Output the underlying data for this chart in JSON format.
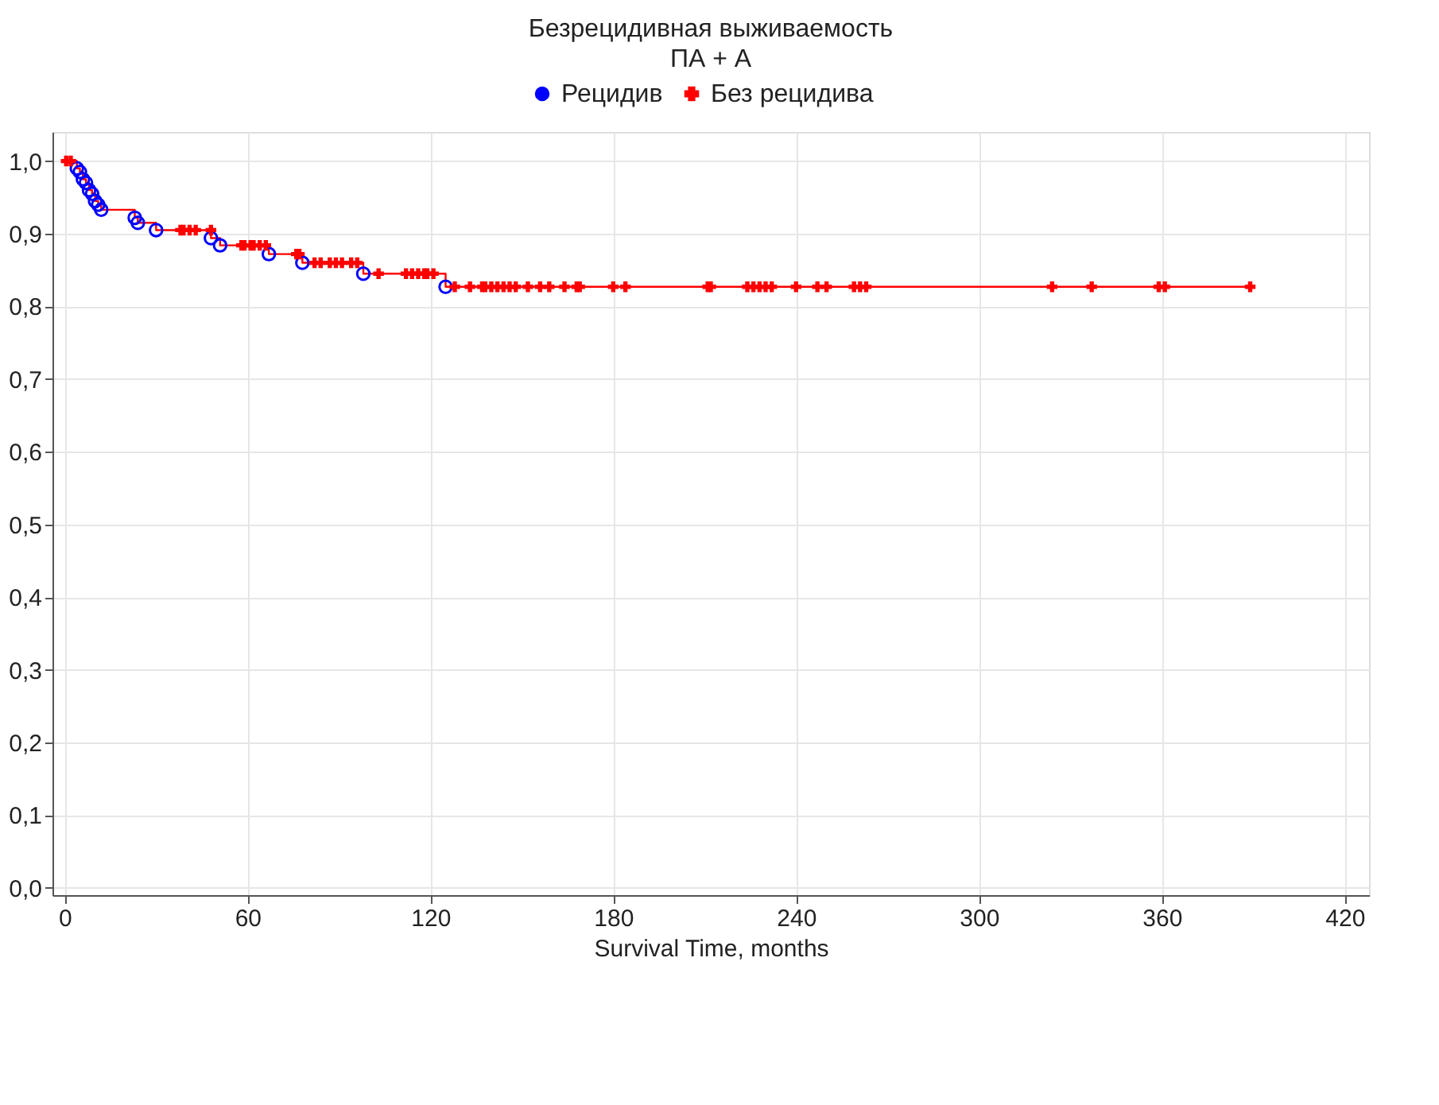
{
  "chart_data": {
    "type": "scatter",
    "title": "Безрецидивная выживаемость",
    "subtitle": "ПА + А",
    "xlabel": "Survival Time, months",
    "xlim": [
      -4,
      428
    ],
    "xticks": [
      0,
      60,
      120,
      180,
      240,
      300,
      360,
      420
    ],
    "ylim": [
      -0.01,
      1.04
    ],
    "yticks": [
      {
        "value": 0,
        "label": "0,0"
      },
      {
        "value": 0.1,
        "label": "0,1"
      },
      {
        "value": 0.2,
        "label": "0,2"
      },
      {
        "value": 0.3,
        "label": "0,3"
      },
      {
        "value": 0.4,
        "label": "0,4"
      },
      {
        "value": 0.5,
        "label": "0,5"
      },
      {
        "value": 0.6,
        "label": "0,6"
      },
      {
        "value": 0.7,
        "label": "0,7"
      },
      {
        "value": 0.8,
        "label": "0,8"
      },
      {
        "value": 0.9,
        "label": "0,9"
      },
      {
        "value": 1.0,
        "label": "1,0"
      }
    ],
    "grid": true,
    "legend": "top",
    "series": [
      {
        "type": "step",
        "color": "#ff0000",
        "marker": "none",
        "line_style": "solid",
        "x": [
          0,
          4,
          5,
          6,
          7,
          8,
          9,
          10,
          11,
          12,
          23,
          24,
          30,
          48,
          51,
          67,
          78,
          98,
          125,
          389
        ],
        "values": [
          1.0,
          0.99,
          0.985,
          0.975,
          0.97,
          0.96,
          0.955,
          0.945,
          0.94,
          0.933,
          0.922,
          0.915,
          0.905,
          0.894,
          0.884,
          0.872,
          0.86,
          0.845,
          0.827,
          0.827
        ]
      },
      {
        "name": "Рецидив",
        "color": "#0000ff",
        "marker": "circle",
        "x": [
          4,
          5,
          6,
          7,
          8,
          9,
          10,
          11,
          12,
          23,
          24,
          30,
          48,
          51,
          67,
          78,
          98,
          125
        ],
        "values": [
          0.99,
          0.985,
          0.975,
          0.97,
          0.96,
          0.955,
          0.945,
          0.94,
          0.933,
          0.922,
          0.915,
          0.905,
          0.894,
          0.884,
          0.872,
          0.86,
          0.845,
          0.827
        ]
      },
      {
        "name": "Без рецидива",
        "color": "#ff0000",
        "marker": "cross",
        "x": [
          0.5,
          2,
          38,
          39,
          41,
          43,
          48,
          58,
          59,
          61,
          62,
          64,
          66,
          76,
          77,
          82,
          84,
          87,
          89,
          91,
          94,
          96,
          103,
          112,
          114,
          116,
          118,
          119,
          121,
          128,
          133,
          137,
          138,
          140,
          142,
          144,
          146,
          148,
          152,
          156,
          159,
          164,
          168,
          169,
          180,
          184,
          211,
          212,
          224,
          226,
          228,
          230,
          232,
          240,
          247,
          250,
          259,
          261,
          263,
          324,
          337,
          359,
          361,
          389
        ],
        "values": [
          1.0,
          1.0,
          0.905,
          0.905,
          0.905,
          0.905,
          0.905,
          0.884,
          0.884,
          0.884,
          0.884,
          0.884,
          0.884,
          0.872,
          0.872,
          0.86,
          0.86,
          0.86,
          0.86,
          0.86,
          0.86,
          0.86,
          0.845,
          0.845,
          0.845,
          0.845,
          0.845,
          0.845,
          0.845,
          0.827,
          0.827,
          0.827,
          0.827,
          0.827,
          0.827,
          0.827,
          0.827,
          0.827,
          0.827,
          0.827,
          0.827,
          0.827,
          0.827,
          0.827,
          0.827,
          0.827,
          0.827,
          0.827,
          0.827,
          0.827,
          0.827,
          0.827,
          0.827,
          0.827,
          0.827,
          0.827,
          0.827,
          0.827,
          0.827,
          0.827,
          0.827,
          0.827,
          0.827,
          0.827
        ]
      }
    ]
  }
}
